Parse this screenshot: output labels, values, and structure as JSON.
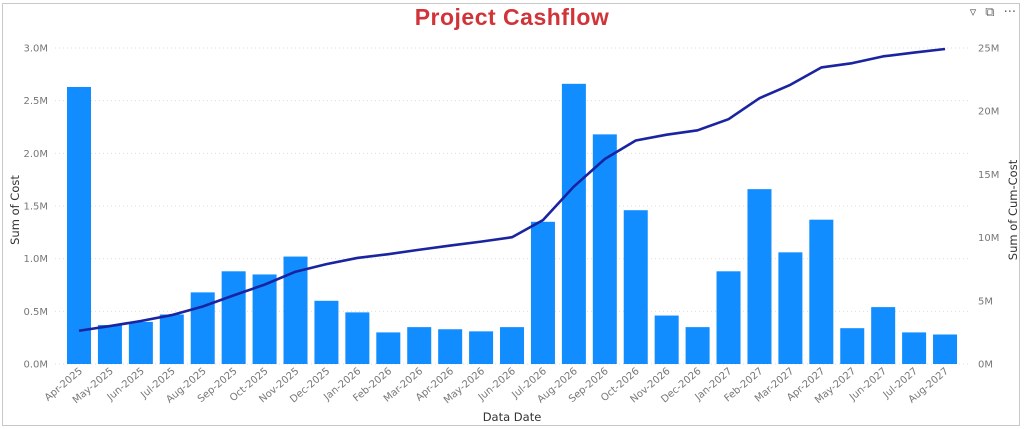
{
  "title": "Project Cashflow",
  "toolbar": {
    "filter_icon": "filter-icon",
    "focus_icon": "focus-mode-icon",
    "more_icon": "more-options-icon",
    "more_label": "···"
  },
  "chart_data": {
    "type": "bar+line",
    "title": "Project Cashflow",
    "xlabel": "Data Date",
    "ylabel": "Sum of Cost",
    "y2label": "Sum of Cum-Cost",
    "ylim": [
      0,
      3000000
    ],
    "y2lim": [
      0,
      25000000
    ],
    "yticks": [
      "0.0M",
      "0.5M",
      "1.0M",
      "1.5M",
      "2.0M",
      "2.5M",
      "3.0M"
    ],
    "y2ticks": [
      "0M",
      "5M",
      "10M",
      "15M",
      "20M",
      "25M"
    ],
    "grid": true,
    "bar_color": "#118dff",
    "line_color": "#1a24a0",
    "categories": [
      "Apr-2025",
      "May-2025",
      "Jun-2025",
      "Jul-2025",
      "Aug-2025",
      "Sep-2025",
      "Oct-2025",
      "Nov-2025",
      "Dec-2025",
      "Jan-2026",
      "Feb-2026",
      "Mar-2026",
      "Apr-2026",
      "May-2026",
      "Jun-2026",
      "Jul-2026",
      "Aug-2026",
      "Sep-2026",
      "Oct-2026",
      "Nov-2026",
      "Dec-2026",
      "Jan-2027",
      "Feb-2027",
      "Mar-2027",
      "Apr-2027",
      "May-2027",
      "Jun-2027",
      "Jul-2027",
      "Aug-2027"
    ],
    "series": [
      {
        "name": "Sum of Cost",
        "type": "bar",
        "axis": "left",
        "values": [
          2630000,
          370000,
          400000,
          470000,
          680000,
          880000,
          850000,
          1020000,
          600000,
          490000,
          300000,
          350000,
          330000,
          310000,
          350000,
          1350000,
          2660000,
          2180000,
          1460000,
          460000,
          350000,
          880000,
          1660000,
          1060000,
          1370000,
          340000,
          540000,
          300000,
          280000
        ]
      },
      {
        "name": "Sum of Cum-Cost",
        "type": "line",
        "axis": "right",
        "values": [
          2630000,
          3000000,
          3400000,
          3870000,
          4550000,
          5430000,
          6280000,
          7300000,
          7900000,
          8390000,
          8690000,
          9040000,
          9370000,
          9680000,
          10030000,
          11380000,
          14040000,
          16220000,
          17680000,
          18140000,
          18490000,
          19370000,
          21030000,
          22090000,
          23460000,
          23800000,
          24340000,
          24640000,
          24920000
        ]
      }
    ]
  }
}
